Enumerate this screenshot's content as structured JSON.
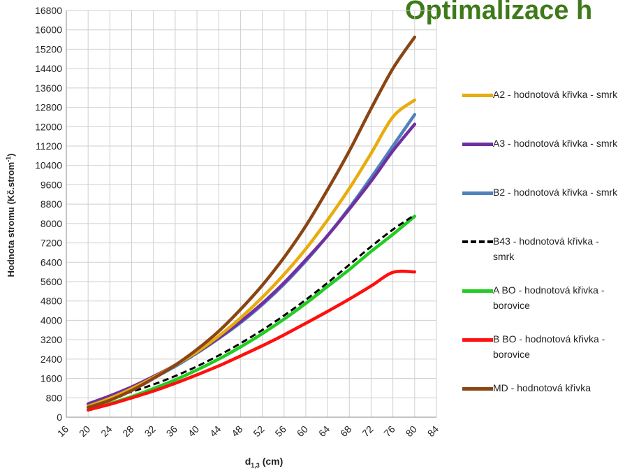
{
  "header": {
    "title": "Optimalizace h"
  },
  "chart_data": {
    "type": "line",
    "xlabel": "d1,3 (cm)",
    "xlabel_main": "d",
    "xlabel_sub": "1,3",
    "xlabel_unit": " (cm)",
    "ylabel": "Hodnota stromu (Kč.strom-1)",
    "ylabel_main": "Hodnota stromu (Kč.strom",
    "ylabel_sup": "-1",
    "ylabel_end": ")",
    "xlim": [
      16,
      84
    ],
    "ylim": [
      0,
      16800
    ],
    "x_ticks": [
      16,
      20,
      24,
      28,
      32,
      36,
      40,
      44,
      48,
      52,
      56,
      60,
      64,
      68,
      72,
      76,
      80,
      84
    ],
    "y_ticks": [
      0,
      800,
      1600,
      2400,
      3200,
      4000,
      4800,
      5600,
      6400,
      7200,
      8000,
      8800,
      9600,
      10400,
      11200,
      12000,
      12800,
      13600,
      14400,
      15200,
      16000,
      16800
    ],
    "grid": true,
    "legend_position": "right",
    "x": [
      20,
      24,
      28,
      32,
      36,
      40,
      44,
      48,
      52,
      56,
      60,
      64,
      68,
      72,
      76,
      80
    ],
    "series": [
      {
        "name": "A2 - hodnotová křivka - smrk",
        "color": "#e8ac0c",
        "dash": false,
        "values": [
          450,
          780,
          1180,
          1640,
          2150,
          2700,
          3350,
          4100,
          4950,
          5900,
          6950,
          8150,
          9450,
          10900,
          12400,
          13100
        ]
      },
      {
        "name": "A3 - hodnotová křivka - smrk",
        "color": "#7030a0",
        "dash": false,
        "values": [
          550,
          880,
          1250,
          1680,
          2150,
          2680,
          3280,
          3950,
          4700,
          5550,
          6500,
          7500,
          8600,
          9750,
          11000,
          12100
        ]
      },
      {
        "name": "B2 - hodnotová křivka - smrk",
        "color": "#4f81bd",
        "dash": false,
        "values": [
          520,
          830,
          1200,
          1620,
          2100,
          2650,
          3250,
          3900,
          4650,
          5500,
          6450,
          7500,
          8650,
          9900,
          11200,
          12500
        ]
      },
      {
        "name": "B43 - hodnotová křivka - smrk",
        "color": "#000000",
        "dash": true,
        "values": [
          520,
          780,
          1050,
          1350,
          1700,
          2100,
          2550,
          3050,
          3600,
          4200,
          4850,
          5550,
          6300,
          7050,
          7750,
          8350
        ]
      },
      {
        "name": "A BO - hodnotová křivka - borovice",
        "color": "#22cc22",
        "dash": false,
        "values": [
          300,
          560,
          850,
          1180,
          1540,
          1950,
          2400,
          2900,
          3450,
          4050,
          4700,
          5400,
          6100,
          6850,
          7550,
          8300
        ]
      },
      {
        "name": "B BO - hodnotová křivka - borovice",
        "color": "#ff0f0f",
        "dash": false,
        "values": [
          300,
          530,
          800,
          1080,
          1400,
          1750,
          2120,
          2530,
          2950,
          3400,
          3880,
          4370,
          4880,
          5420,
          5980,
          6000
        ]
      },
      {
        "name": "MD - hodnotová křivka",
        "color": "#8a4513",
        "dash": false,
        "values": [
          400,
          700,
          1100,
          1600,
          2150,
          2800,
          3550,
          4450,
          5450,
          6600,
          7900,
          9400,
          11000,
          12750,
          14400,
          15700
        ]
      }
    ]
  }
}
